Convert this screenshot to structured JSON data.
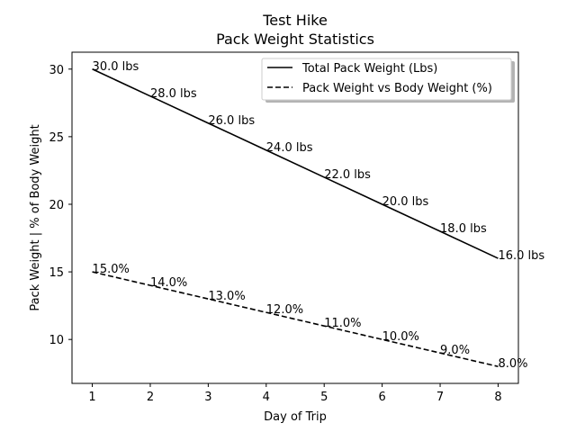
{
  "chart_data": {
    "type": "line",
    "title": "Test Hike",
    "subtitle": "Pack Weight Statistics",
    "xlabel": "Day of Trip",
    "ylabel": "Pack Weight | % of Body Weight",
    "x": [
      1,
      2,
      3,
      4,
      5,
      6,
      7,
      8
    ],
    "xlim": [
      0.65,
      8.35
    ],
    "ylim": [
      6.75,
      31.25
    ],
    "xticks": [
      "1",
      "2",
      "3",
      "4",
      "5",
      "6",
      "7",
      "8"
    ],
    "yticks": [
      "10",
      "15",
      "20",
      "25",
      "30"
    ],
    "grid": false,
    "legend_position": "top-right",
    "series": [
      {
        "name": "Total Pack Weight (Lbs)",
        "style": "solid",
        "color": "#000000",
        "values": [
          30,
          28,
          26,
          24,
          22,
          20,
          18,
          16
        ],
        "labels": [
          "30.0 lbs",
          "28.0 lbs",
          "26.0 lbs",
          "24.0 lbs",
          "22.0 lbs",
          "20.0 lbs",
          "18.0 lbs",
          "16.0 lbs"
        ]
      },
      {
        "name": "Pack Weight vs Body Weight (%)",
        "style": "dashed",
        "color": "#000000",
        "values": [
          15,
          14,
          13,
          12,
          11,
          10,
          9,
          8
        ],
        "labels": [
          "15.0%",
          "14.0%",
          "13.0%",
          "12.0%",
          "11.0%",
          "10.0%",
          "9.0%",
          "8.0%"
        ]
      }
    ]
  }
}
